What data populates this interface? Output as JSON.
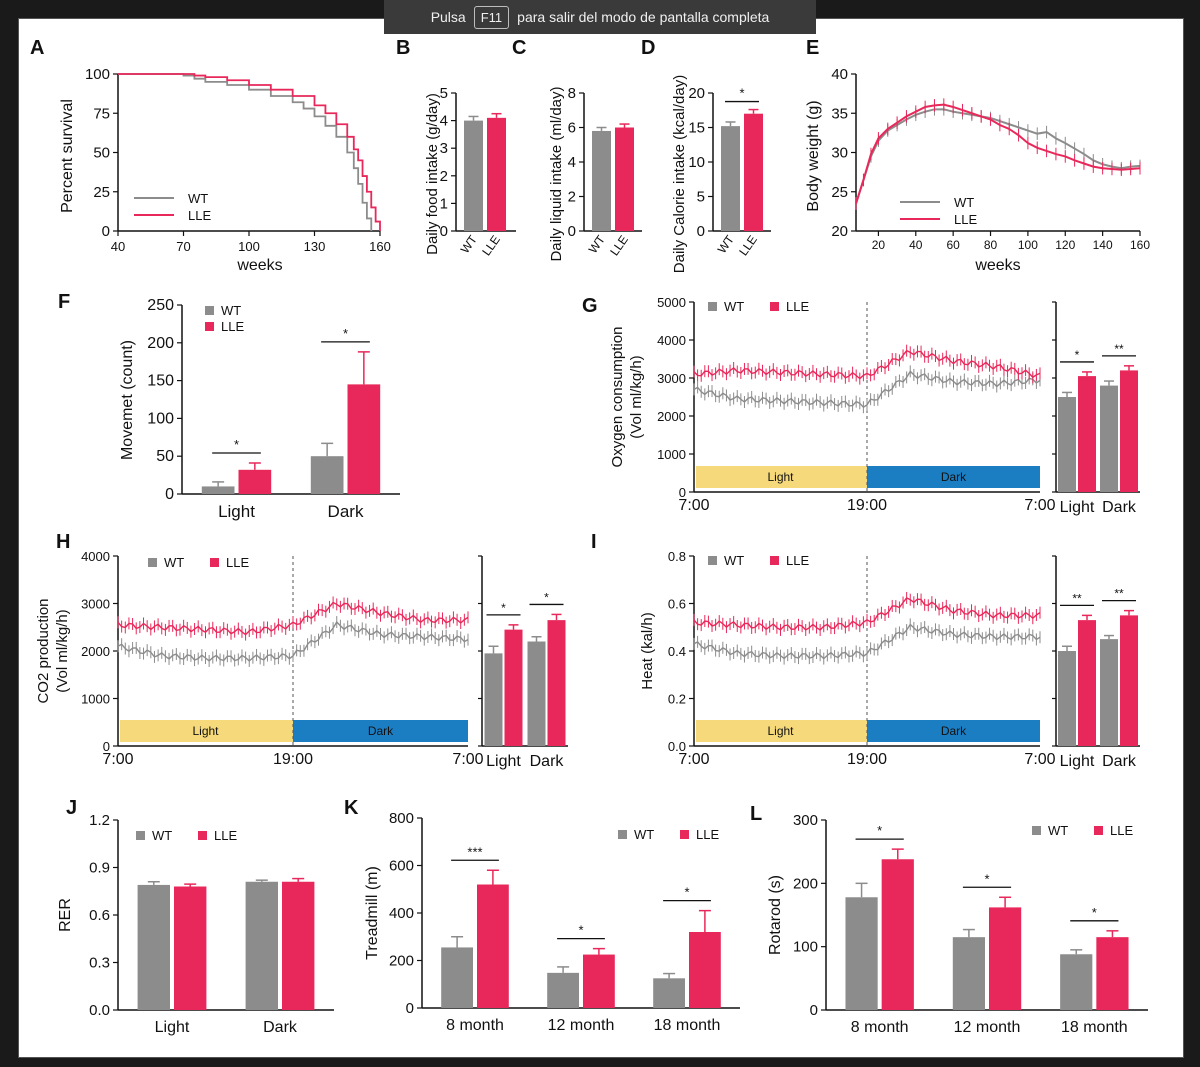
{
  "banner": {
    "before": "Pulsa",
    "key": "F11",
    "after": "para salir del modo de pantalla completa"
  },
  "colors": {
    "wt": "#8c8c8c",
    "lle": "#e8285a",
    "light_band": "#f5d97a",
    "dark_band": "#1b7ec2"
  },
  "chart_data": [
    {
      "panel": "A",
      "type": "line",
      "xlabel": "weeks",
      "ylabel": "Percent survival",
      "xticks": [
        40,
        70,
        100,
        130,
        160
      ],
      "yticks": [
        0,
        25,
        50,
        75,
        100
      ],
      "xlim": [
        40,
        160
      ],
      "ylim": [
        0,
        100
      ],
      "legend": "bottom-left",
      "series": [
        {
          "name": "WT",
          "x": [
            40,
            65,
            70,
            75,
            80,
            90,
            100,
            110,
            120,
            125,
            130,
            135,
            140,
            145,
            148,
            150,
            152,
            154,
            156
          ],
          "y": [
            100,
            100,
            99,
            97,
            95,
            93,
            90,
            86,
            82,
            78,
            73,
            67,
            60,
            50,
            40,
            30,
            18,
            8,
            0
          ]
        },
        {
          "name": "LLE",
          "x": [
            40,
            70,
            75,
            80,
            90,
            100,
            110,
            120,
            130,
            135,
            140,
            145,
            148,
            150,
            152,
            154,
            156,
            158,
            160
          ],
          "y": [
            100,
            100,
            99,
            98,
            96,
            93,
            90,
            86,
            80,
            75,
            68,
            60,
            52,
            45,
            35,
            25,
            15,
            6,
            0
          ]
        }
      ]
    },
    {
      "panel": "B",
      "type": "bar",
      "ylabel": "Daily food intake (g/day)",
      "categories": [
        "WT",
        "LLE"
      ],
      "values": [
        4.0,
        4.1
      ],
      "errors": [
        0.15,
        0.15
      ],
      "ylim": [
        0,
        5
      ],
      "yticks": [
        0,
        1,
        2,
        3,
        4,
        5
      ]
    },
    {
      "panel": "C",
      "type": "bar",
      "ylabel": "Daily liquid intake (ml/day)",
      "categories": [
        "WT",
        "LLE"
      ],
      "values": [
        5.8,
        6.0
      ],
      "errors": [
        0.2,
        0.2
      ],
      "ylim": [
        0,
        8
      ],
      "yticks": [
        0,
        2,
        4,
        6,
        8
      ]
    },
    {
      "panel": "D",
      "type": "bar",
      "ylabel": "Daily Calorie intake (kcal/day)",
      "categories": [
        "WT",
        "LLE"
      ],
      "values": [
        15.2,
        17.0
      ],
      "errors": [
        0.6,
        0.6
      ],
      "ylim": [
        0,
        20
      ],
      "yticks": [
        0,
        5,
        10,
        15,
        20
      ],
      "significance": [
        "*"
      ]
    },
    {
      "panel": "E",
      "type": "line",
      "xlabel": "weeks",
      "ylabel": "Body weight (g)",
      "xticks": [
        20,
        40,
        60,
        80,
        100,
        120,
        140,
        160
      ],
      "yticks": [
        20,
        25,
        30,
        35,
        40
      ],
      "xlim": [
        8,
        160
      ],
      "ylim": [
        20,
        40
      ],
      "legend": "bottom-left",
      "series": [
        {
          "name": "WT",
          "x": [
            8,
            12,
            16,
            20,
            25,
            30,
            35,
            40,
            45,
            50,
            55,
            60,
            65,
            70,
            75,
            80,
            85,
            90,
            95,
            100,
            105,
            110,
            115,
            120,
            125,
            130,
            135,
            140,
            145,
            150,
            155,
            160
          ],
          "y": [
            23.5,
            26.5,
            29.5,
            31.5,
            32.8,
            33.5,
            34.2,
            34.8,
            35.2,
            35.5,
            35.5,
            35.2,
            35.0,
            34.8,
            34.6,
            34.4,
            34.0,
            33.6,
            33.2,
            32.8,
            32.4,
            32.6,
            31.8,
            31.2,
            30.5,
            29.8,
            29.0,
            28.5,
            28.2,
            28.0,
            28.2,
            28.3
          ]
        },
        {
          "name": "LLE",
          "x": [
            8,
            12,
            16,
            20,
            25,
            30,
            35,
            40,
            45,
            50,
            55,
            60,
            65,
            70,
            75,
            80,
            85,
            90,
            95,
            100,
            105,
            110,
            115,
            120,
            125,
            130,
            135,
            140,
            145,
            150,
            155,
            160
          ],
          "y": [
            23.5,
            26.5,
            29.8,
            31.8,
            33.0,
            33.8,
            34.6,
            35.2,
            35.8,
            36.0,
            36.1,
            35.8,
            35.4,
            35.0,
            34.6,
            34.2,
            33.5,
            33.0,
            32.2,
            31.2,
            30.6,
            30.2,
            29.8,
            29.5,
            29.0,
            28.6,
            28.2,
            28.0,
            27.9,
            27.8,
            27.9,
            28.0
          ]
        }
      ]
    },
    {
      "panel": "F",
      "type": "bar",
      "ylabel": "Movemet (count)",
      "categories": [
        "Light",
        "Dark"
      ],
      "ylim": [
        0,
        250
      ],
      "yticks": [
        0,
        50,
        100,
        150,
        200,
        250
      ],
      "legend": "top-left",
      "significance": [
        "*",
        "*"
      ],
      "series": [
        {
          "name": "WT",
          "values": [
            10,
            50
          ],
          "errors": [
            6,
            17
          ]
        },
        {
          "name": "LLE",
          "values": [
            32,
            145
          ],
          "errors": [
            9,
            43
          ]
        }
      ]
    },
    {
      "panel": "G",
      "type": "line",
      "ylabel": "Oxygen consumption (Vol ml/kg/h)",
      "xticks": [
        "7:00",
        "19:00",
        "7:00"
      ],
      "yticks": [
        0,
        1000,
        2000,
        3000,
        4000,
        5000
      ],
      "ylim": [
        0,
        5000
      ],
      "legend": "top-left",
      "phase_labels": [
        "Light",
        "Dark"
      ],
      "series": [
        {
          "name": "WT",
          "x": [
            0,
            3,
            6,
            9,
            12,
            15,
            18,
            21,
            24
          ],
          "y": [
            2700,
            2450,
            2400,
            2350,
            2300,
            3100,
            2900,
            2850,
            2950
          ]
        },
        {
          "name": "LLE",
          "x": [
            0,
            3,
            6,
            9,
            12,
            15,
            18,
            21,
            24
          ],
          "y": [
            3100,
            3200,
            3150,
            3100,
            3050,
            3700,
            3450,
            3300,
            3050
          ]
        }
      ],
      "summary": {
        "categories": [
          "Light",
          "Dark"
        ],
        "significance": [
          "*",
          "**"
        ],
        "series": [
          {
            "name": "WT",
            "values": [
              2500,
              2800
            ],
            "errors": [
              120,
              120
            ]
          },
          {
            "name": "LLE",
            "values": [
              3050,
              3200
            ],
            "errors": [
              110,
              120
            ]
          }
        ]
      }
    },
    {
      "panel": "H",
      "type": "line",
      "ylabel": "CO2 production (Vol ml/kg/h)",
      "xticks": [
        "7:00",
        "19:00",
        "7:00"
      ],
      "yticks": [
        0,
        1000,
        2000,
        3000,
        4000
      ],
      "ylim": [
        0,
        4000
      ],
      "legend": "top-left",
      "phase_labels": [
        "Light",
        "Dark"
      ],
      "series": [
        {
          "name": "WT",
          "x": [
            0,
            3,
            6,
            9,
            12,
            15,
            18,
            21,
            24
          ],
          "y": [
            2100,
            1900,
            1850,
            1850,
            1900,
            2550,
            2350,
            2300,
            2250
          ]
        },
        {
          "name": "LLE",
          "x": [
            0,
            3,
            6,
            9,
            12,
            15,
            18,
            21,
            24
          ],
          "y": [
            2550,
            2500,
            2450,
            2400,
            2550,
            3000,
            2800,
            2650,
            2650
          ]
        }
      ],
      "summary": {
        "categories": [
          "Light",
          "Dark"
        ],
        "significance": [
          "*",
          "*"
        ],
        "series": [
          {
            "name": "WT",
            "values": [
              1950,
              2200
            ],
            "errors": [
              150,
              100
            ]
          },
          {
            "name": "LLE",
            "values": [
              2450,
              2650
            ],
            "errors": [
              100,
              120
            ]
          }
        ]
      }
    },
    {
      "panel": "I",
      "type": "line",
      "ylabel": "Heat (kal/h)",
      "xticks": [
        "7:00",
        "19:00",
        "7:00"
      ],
      "yticks": [
        "0.0",
        "0.2",
        "0.4",
        "0.6",
        "0.8"
      ],
      "ylim": [
        0,
        0.8
      ],
      "legend": "top-left",
      "phase_labels": [
        "Light",
        "Dark"
      ],
      "series": [
        {
          "name": "WT",
          "x": [
            0,
            3,
            6,
            9,
            12,
            15,
            18,
            21,
            24
          ],
          "y": [
            0.43,
            0.39,
            0.38,
            0.38,
            0.39,
            0.5,
            0.47,
            0.46,
            0.46
          ]
        },
        {
          "name": "LLE",
          "x": [
            0,
            3,
            6,
            9,
            12,
            15,
            18,
            21,
            24
          ],
          "y": [
            0.52,
            0.51,
            0.5,
            0.5,
            0.52,
            0.62,
            0.57,
            0.55,
            0.55
          ]
        }
      ],
      "summary": {
        "categories": [
          "Light",
          "Dark"
        ],
        "significance": [
          "**",
          "**"
        ],
        "series": [
          {
            "name": "WT",
            "values": [
              0.4,
              0.45
            ],
            "errors": [
              0.02,
              0.015
            ]
          },
          {
            "name": "LLE",
            "values": [
              0.53,
              0.55
            ],
            "errors": [
              0.02,
              0.02
            ]
          }
        ]
      }
    },
    {
      "panel": "J",
      "type": "bar",
      "ylabel": "RER",
      "categories": [
        "Light",
        "Dark"
      ],
      "ylim": [
        0,
        1.2
      ],
      "yticks": [
        "0.0",
        "0.3",
        "0.6",
        "0.9",
        "1.2"
      ],
      "legend": "top-left",
      "series": [
        {
          "name": "WT",
          "values": [
            0.79,
            0.81
          ],
          "errors": [
            0.02,
            0.01
          ]
        },
        {
          "name": "LLE",
          "values": [
            0.78,
            0.81
          ],
          "errors": [
            0.015,
            0.02
          ]
        }
      ]
    },
    {
      "panel": "K",
      "type": "bar",
      "ylabel": "Treadmill (m)",
      "categories": [
        "8 month",
        "12 month",
        "18 month"
      ],
      "ylim": [
        0,
        800
      ],
      "yticks": [
        0,
        200,
        400,
        600,
        800
      ],
      "legend": "top-right",
      "significance": [
        "***",
        "*",
        "*"
      ],
      "series": [
        {
          "name": "WT",
          "values": [
            255,
            148,
            125
          ],
          "errors": [
            45,
            25,
            20
          ]
        },
        {
          "name": "LLE",
          "values": [
            520,
            225,
            320
          ],
          "errors": [
            60,
            25,
            90
          ]
        }
      ]
    },
    {
      "panel": "L",
      "type": "bar",
      "ylabel": "Rotarod (s)",
      "categories": [
        "8 month",
        "12 month",
        "18 month"
      ],
      "ylim": [
        0,
        300
      ],
      "yticks": [
        0,
        100,
        200,
        300
      ],
      "legend": "top-right",
      "significance": [
        "*",
        "*",
        "*"
      ],
      "series": [
        {
          "name": "WT",
          "values": [
            178,
            115,
            88
          ],
          "errors": [
            22,
            12,
            7
          ]
        },
        {
          "name": "LLE",
          "values": [
            238,
            162,
            115
          ],
          "errors": [
            16,
            16,
            10
          ]
        }
      ]
    }
  ]
}
